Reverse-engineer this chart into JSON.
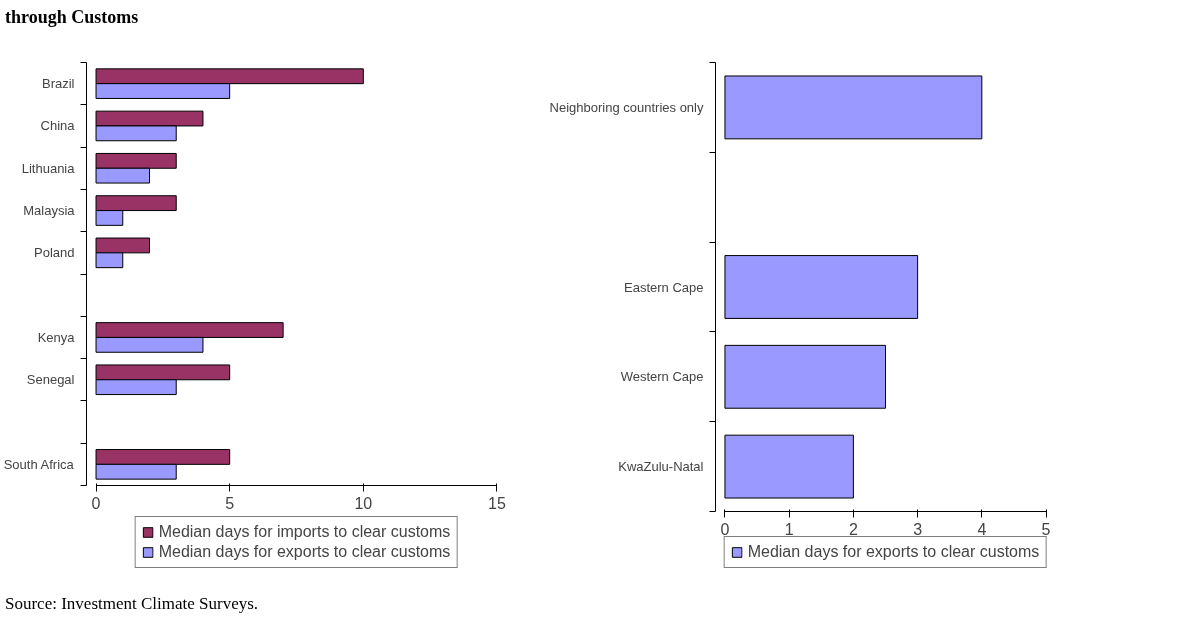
{
  "chart_data": [
    {
      "type": "bar",
      "orientation": "horizontal",
      "title": "through Customs",
      "categories": [
        "Brazil",
        "China",
        "Lithuania",
        "Malaysia",
        "Poland",
        null,
        "Kenya",
        "Senegal",
        null,
        "South Africa"
      ],
      "series": [
        {
          "name": "Median days for imports to clear customs",
          "color": "#993366",
          "values": [
            10,
            4,
            3,
            3,
            2,
            null,
            7,
            5,
            null,
            5
          ]
        },
        {
          "name": "Median days for exports to clear customs",
          "color": "#9999ff",
          "values": [
            5,
            3,
            2,
            1,
            1,
            null,
            4,
            3,
            null,
            3
          ]
        }
      ],
      "xlim": [
        0,
        15
      ],
      "xticks": [
        0,
        5,
        10,
        15
      ],
      "legend": "bottom",
      "annotations": [
        "Source: Investment Climate Surveys."
      ]
    },
    {
      "type": "bar",
      "orientation": "horizontal",
      "categories": [
        "Neighboring countries only",
        null,
        "Eastern Cape",
        "Western Cape",
        "KwaZulu-Natal"
      ],
      "series": [
        {
          "name": "Median days for exports to clear customs",
          "color": "#9999ff",
          "values": [
            4,
            null,
            3,
            2.5,
            2
          ]
        }
      ],
      "xlim": [
        0,
        5
      ],
      "xticks": [
        0,
        1,
        2,
        3,
        4,
        5
      ],
      "legend": "bottom"
    }
  ]
}
